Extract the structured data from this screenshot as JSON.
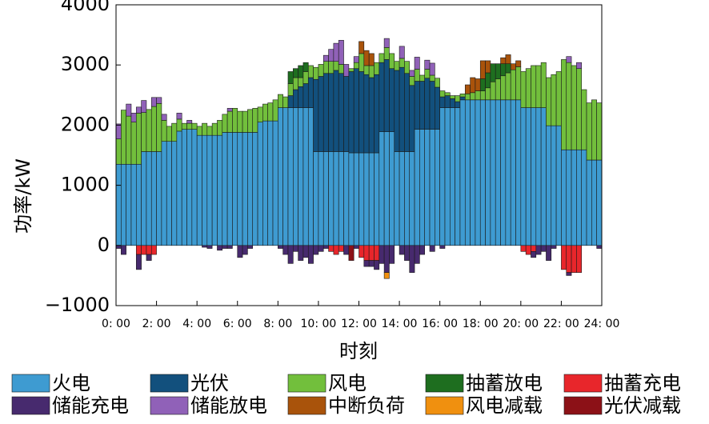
{
  "chart_data": {
    "type": "stacked-bar",
    "y_label": "功率/kW",
    "x_label": "时刻",
    "xlim": [
      0,
      24
    ],
    "xticks": [
      {
        "value": 0,
        "label": "0: 00"
      },
      {
        "value": 2,
        "label": "2: 00"
      },
      {
        "value": 4,
        "label": "4: 00"
      },
      {
        "value": 6,
        "label": "6: 00"
      },
      {
        "value": 8,
        "label": "8: 00"
      },
      {
        "value": 10,
        "label": "10: 00"
      },
      {
        "value": 12,
        "label": "12: 00"
      },
      {
        "value": 14,
        "label": "14: 00"
      },
      {
        "value": 16,
        "label": "16: 00"
      },
      {
        "value": 18,
        "label": "18: 00"
      },
      {
        "value": 20,
        "label": "20: 00"
      },
      {
        "value": 22,
        "label": "22: 00"
      },
      {
        "value": 24,
        "label": "24: 00"
      }
    ],
    "ylim": [
      -1000,
      4000
    ],
    "yticks": [
      {
        "value": -1000,
        "label": "−1000"
      },
      0,
      1000,
      2000,
      3000,
      4000
    ],
    "bar_width": 0.25,
    "x": [
      0,
      0.25,
      0.5,
      0.75,
      1,
      1.25,
      1.5,
      1.75,
      2,
      2.25,
      2.5,
      2.75,
      3,
      3.25,
      3.5,
      3.75,
      4,
      4.25,
      4.5,
      4.75,
      5,
      5.25,
      5.5,
      5.75,
      6,
      6.25,
      6.5,
      6.75,
      7,
      7.25,
      7.5,
      7.75,
      8,
      8.25,
      8.5,
      8.75,
      9,
      9.25,
      9.5,
      9.75,
      10,
      10.25,
      10.5,
      10.75,
      11,
      11.25,
      11.5,
      11.75,
      12,
      12.25,
      12.5,
      12.75,
      13,
      13.25,
      13.5,
      13.75,
      14,
      14.25,
      14.5,
      14.75,
      15,
      15.25,
      15.5,
      15.75,
      16,
      16.25,
      16.5,
      16.75,
      17,
      17.25,
      17.5,
      17.75,
      18,
      18.25,
      18.5,
      18.75,
      19,
      19.25,
      19.5,
      19.75,
      20,
      20.25,
      20.5,
      20.75,
      21,
      21.25,
      21.5,
      21.75,
      22,
      22.25,
      22.5,
      22.75,
      23,
      23.25,
      23.5,
      23.75
    ],
    "series": [
      {
        "name": "火电",
        "color": "#3e9bd1",
        "values": [
          1350,
          1350,
          1350,
          1350,
          1350,
          1560,
          1560,
          1560,
          1560,
          1730,
          1730,
          1730,
          1900,
          1930,
          1930,
          1930,
          1830,
          1830,
          1830,
          1830,
          1830,
          1880,
          1880,
          1880,
          1880,
          1880,
          1880,
          1880,
          2050,
          2070,
          2070,
          2070,
          2290,
          2290,
          2290,
          2290,
          2290,
          2290,
          2290,
          1560,
          1560,
          1560,
          1560,
          1560,
          1560,
          1560,
          1540,
          1540,
          1540,
          1540,
          1540,
          1540,
          1890,
          1890,
          1890,
          1560,
          1560,
          1560,
          1560,
          1930,
          1930,
          1930,
          1930,
          1930,
          2290,
          2290,
          2290,
          2290,
          2420,
          2420,
          2420,
          2420,
          2420,
          2420,
          2420,
          2420,
          2420,
          2420,
          2420,
          2420,
          2290,
          2290,
          2290,
          2290,
          2290,
          1990,
          1990,
          1990,
          1590,
          1590,
          1590,
          1590,
          1590,
          1420,
          1420,
          1420
        ]
      },
      {
        "name": "光伏",
        "color": "#12507d",
        "values": [
          0,
          0,
          0,
          0,
          0,
          0,
          0,
          0,
          0,
          0,
          0,
          0,
          0,
          0,
          0,
          0,
          0,
          0,
          0,
          0,
          0,
          0,
          0,
          0,
          0,
          0,
          0,
          0,
          0,
          0,
          0,
          0,
          0,
          0,
          200,
          300,
          350,
          400,
          500,
          1200,
          1250,
          1300,
          1300,
          1350,
          1300,
          1250,
          1350,
          1400,
          1350,
          1300,
          1250,
          1300,
          1150,
          1200,
          1050,
          1350,
          1400,
          1300,
          1100,
          800,
          800,
          850,
          800,
          700,
          180,
          200,
          150,
          100,
          50,
          0,
          0,
          0,
          0,
          0,
          0,
          0,
          0,
          0,
          0,
          0,
          0,
          0,
          0,
          0,
          0,
          0,
          0,
          0,
          0,
          0,
          0,
          0,
          0,
          0,
          0,
          0
        ]
      },
      {
        "name": "风电",
        "color": "#72bf3c",
        "values": [
          420,
          900,
          800,
          700,
          850,
          650,
          700,
          750,
          800,
          350,
          250,
          300,
          200,
          100,
          100,
          100,
          150,
          200,
          150,
          200,
          250,
          300,
          350,
          400,
          350,
          350,
          380,
          400,
          250,
          280,
          300,
          350,
          220,
          180,
          200,
          200,
          150,
          200,
          200,
          200,
          200,
          200,
          200,
          150,
          150,
          0,
          50,
          100,
          300,
          150,
          200,
          200,
          150,
          200,
          250,
          150,
          150,
          200,
          150,
          200,
          100,
          150,
          100,
          150,
          100,
          50,
          50,
          100,
          50,
          100,
          120,
          150,
          150,
          200,
          300,
          350,
          400,
          450,
          500,
          550,
          600,
          650,
          700,
          700,
          750,
          800,
          850,
          900,
          1500,
          1450,
          1400,
          1350,
          1000,
          950,
          1000,
          950
        ]
      },
      {
        "name": "抽蓄放电",
        "color": "#1e6e1f",
        "values": [
          0,
          0,
          0,
          0,
          0,
          0,
          0,
          0,
          0,
          0,
          0,
          0,
          0,
          0,
          0,
          0,
          0,
          0,
          0,
          0,
          0,
          0,
          0,
          0,
          0,
          0,
          0,
          0,
          0,
          0,
          0,
          0,
          0,
          0,
          200,
          150,
          200,
          150,
          0,
          0,
          0,
          0,
          0,
          0,
          0,
          0,
          0,
          0,
          0,
          0,
          0,
          0,
          0,
          0,
          0,
          0,
          0,
          0,
          0,
          0,
          0,
          0,
          0,
          0,
          0,
          0,
          0,
          0,
          0,
          0,
          0,
          0,
          200,
          250,
          300,
          250,
          200,
          150,
          0,
          0,
          0,
          0,
          0,
          0,
          0,
          0,
          0,
          0,
          0,
          0,
          0,
          0,
          0,
          0,
          0,
          0
        ]
      },
      {
        "name": "抽蓄充电",
        "color": "#e8262b",
        "values": [
          0,
          0,
          0,
          0,
          -150,
          -150,
          -150,
          -150,
          0,
          0,
          0,
          0,
          0,
          0,
          0,
          0,
          0,
          0,
          0,
          0,
          0,
          0,
          0,
          0,
          0,
          0,
          0,
          0,
          0,
          0,
          0,
          0,
          0,
          0,
          0,
          0,
          0,
          0,
          0,
          0,
          0,
          0,
          -100,
          -150,
          -100,
          0,
          0,
          0,
          -200,
          -250,
          -250,
          -250,
          0,
          0,
          0,
          0,
          0,
          0,
          0,
          0,
          0,
          0,
          0,
          0,
          0,
          0,
          0,
          0,
          0,
          0,
          0,
          0,
          0,
          0,
          0,
          0,
          0,
          0,
          0,
          0,
          -100,
          -150,
          -100,
          0,
          0,
          0,
          0,
          0,
          -400,
          -450,
          -450,
          -450,
          0,
          0,
          0,
          0
        ]
      },
      {
        "name": "储能充电",
        "color": "#472a6e",
        "values": [
          -50,
          -150,
          0,
          0,
          -250,
          0,
          -100,
          0,
          0,
          0,
          0,
          0,
          0,
          0,
          0,
          0,
          0,
          -30,
          -50,
          0,
          -80,
          -50,
          -50,
          0,
          -200,
          -150,
          -50,
          0,
          0,
          0,
          0,
          0,
          -50,
          -150,
          -300,
          -100,
          -250,
          -200,
          -300,
          -150,
          -100,
          -50,
          0,
          0,
          0,
          -150,
          0,
          -50,
          0,
          -100,
          -100,
          -150,
          -300,
          -450,
          -300,
          0,
          -150,
          -250,
          -450,
          -300,
          -150,
          0,
          -100,
          0,
          -50,
          0,
          0,
          0,
          0,
          0,
          0,
          0,
          0,
          0,
          0,
          0,
          0,
          0,
          0,
          0,
          0,
          0,
          -100,
          -150,
          -100,
          -250,
          -50,
          0,
          0,
          -50,
          0,
          0,
          0,
          0,
          0,
          -50
        ]
      },
      {
        "name": "储能放电",
        "color": "#9061b8",
        "values": [
          250,
          0,
          200,
          150,
          100,
          200,
          0,
          150,
          100,
          100,
          0,
          0,
          100,
          0,
          50,
          0,
          0,
          0,
          0,
          0,
          0,
          0,
          50,
          0,
          0,
          0,
          0,
          0,
          0,
          0,
          0,
          0,
          0,
          0,
          0,
          0,
          0,
          0,
          0,
          0,
          0,
          100,
          200,
          300,
          400,
          200,
          0,
          100,
          0,
          0,
          0,
          0,
          0,
          150,
          0,
          0,
          200,
          0,
          100,
          200,
          0,
          150,
          200,
          0,
          0,
          0,
          0,
          0,
          0,
          0,
          0,
          0,
          0,
          0,
          0,
          0,
          0,
          0,
          0,
          0,
          0,
          0,
          0,
          0,
          0,
          0,
          0,
          0,
          0,
          100,
          0,
          100,
          0,
          0,
          0,
          0
        ]
      },
      {
        "name": "中断负荷",
        "color": "#a9530b",
        "values": [
          0,
          0,
          0,
          0,
          0,
          0,
          0,
          0,
          0,
          0,
          0,
          0,
          0,
          0,
          0,
          0,
          0,
          0,
          0,
          0,
          0,
          0,
          0,
          0,
          0,
          0,
          0,
          0,
          0,
          0,
          0,
          0,
          0,
          0,
          0,
          0,
          0,
          0,
          0,
          0,
          0,
          0,
          0,
          0,
          0,
          0,
          0,
          0,
          200,
          250,
          200,
          0,
          0,
          0,
          0,
          0,
          0,
          0,
          0,
          0,
          0,
          0,
          0,
          0,
          0,
          0,
          0,
          0,
          0,
          150,
          250,
          200,
          300,
          200,
          0,
          0,
          100,
          150,
          100,
          100,
          0,
          0,
          0,
          0,
          0,
          0,
          0,
          0,
          0,
          0,
          0,
          0,
          0,
          0,
          0,
          0
        ]
      },
      {
        "name": "风电减载",
        "color": "#f0900f",
        "values": [
          0,
          0,
          0,
          0,
          0,
          0,
          0,
          0,
          0,
          0,
          0,
          0,
          0,
          0,
          0,
          0,
          0,
          0,
          0,
          0,
          0,
          0,
          0,
          0,
          0,
          0,
          0,
          0,
          0,
          0,
          0,
          0,
          0,
          0,
          0,
          0,
          0,
          0,
          0,
          0,
          0,
          0,
          0,
          0,
          0,
          0,
          0,
          0,
          0,
          0,
          0,
          0,
          0,
          -100,
          0,
          0,
          0,
          0,
          0,
          0,
          0,
          0,
          0,
          0,
          0,
          0,
          0,
          0,
          0,
          0,
          0,
          0,
          0,
          0,
          0,
          0,
          0,
          0,
          0,
          0,
          0,
          0,
          0,
          0,
          0,
          0,
          0,
          0,
          0,
          0,
          0,
          0,
          0,
          0,
          0,
          0
        ]
      },
      {
        "name": "光伏减载",
        "color": "#8c1117",
        "values": [
          0,
          0,
          0,
          0,
          0,
          0,
          0,
          0,
          0,
          0,
          0,
          0,
          0,
          0,
          0,
          0,
          0,
          0,
          0,
          0,
          0,
          0,
          0,
          0,
          0,
          0,
          0,
          0,
          0,
          0,
          0,
          0,
          0,
          0,
          0,
          0,
          0,
          0,
          0,
          0,
          0,
          0,
          0,
          0,
          0,
          0,
          -250,
          0,
          0,
          0,
          0,
          0,
          0,
          0,
          0,
          0,
          0,
          0,
          0,
          0,
          0,
          0,
          0,
          0,
          0,
          0,
          0,
          0,
          0,
          0,
          0,
          0,
          0,
          0,
          0,
          0,
          0,
          0,
          0,
          0,
          0,
          0,
          0,
          0,
          0,
          0,
          0,
          0,
          0,
          0,
          0,
          0,
          0,
          0,
          0,
          0
        ]
      }
    ]
  }
}
